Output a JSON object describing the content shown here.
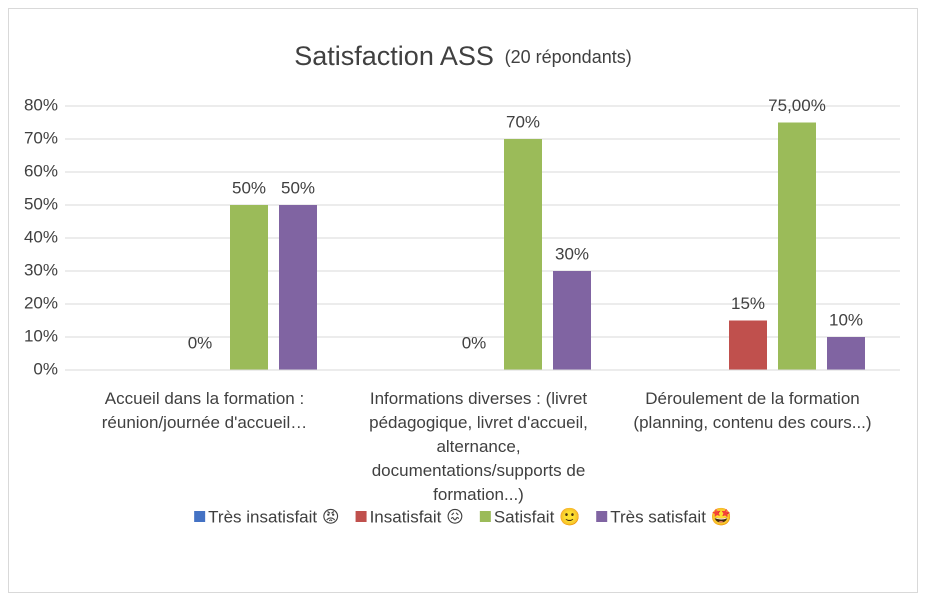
{
  "chart_data": {
    "type": "bar",
    "title": "Satisfaction ASS",
    "subtitle": "(20 répondants)",
    "categories": [
      "Accueil dans la formation : réunion/journée d'accueil…",
      "Informations diverses : (livret pédagogique, livret d'accueil, alternance, documentations/supports de formation...)",
      "Déroulement de la formation (planning, contenu des cours...)"
    ],
    "series": [
      {
        "name": "Très insatisfait 😡",
        "color": "#4472c4",
        "values": [
          null,
          null,
          null
        ]
      },
      {
        "name": "Insatisfait 😖",
        "color": "#c0504d",
        "values": [
          0,
          0,
          15
        ],
        "value_labels": [
          "0%",
          "0%",
          "15%"
        ]
      },
      {
        "name": "Satisfait 🙂",
        "color": "#9bbb59",
        "values": [
          50,
          70,
          75
        ],
        "value_labels": [
          "50%",
          "70%",
          "75,00%"
        ]
      },
      {
        "name": "Très satisfait 🤩",
        "color": "#8064a2",
        "values": [
          50,
          30,
          10
        ],
        "value_labels": [
          "50%",
          "30%",
          "10%"
        ]
      }
    ],
    "ylim": [
      0,
      80
    ],
    "yticks": [
      {
        "value": 0,
        "label": "0%"
      },
      {
        "value": 10,
        "label": "10%"
      },
      {
        "value": 20,
        "label": "20%"
      },
      {
        "value": 30,
        "label": "30%"
      },
      {
        "value": 40,
        "label": "40%"
      },
      {
        "value": 50,
        "label": "50%"
      },
      {
        "value": 60,
        "label": "60%"
      },
      {
        "value": 70,
        "label": "70%"
      },
      {
        "value": 80,
        "label": "80%"
      }
    ],
    "grid": true,
    "legend": "bottom"
  }
}
